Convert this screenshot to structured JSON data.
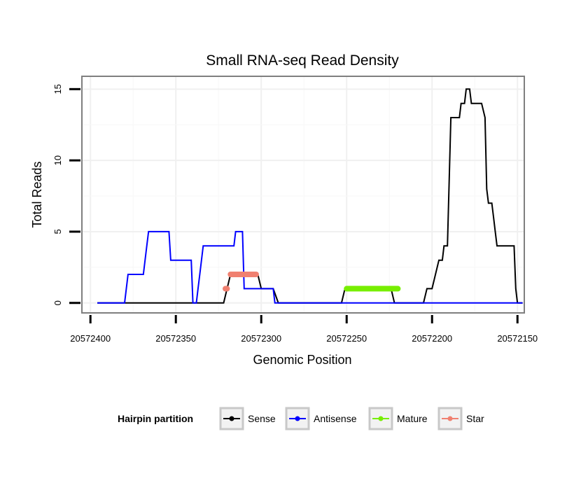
{
  "chart_data": {
    "type": "line",
    "title": "Small RNA-seq Read Density",
    "xlabel": "Genomic Position",
    "ylabel": "Total Reads",
    "x_reversed": true,
    "xlim": [
      20572405,
      20572146
    ],
    "ylim": [
      -0.7,
      15.9
    ],
    "x_ticks": [
      {
        "value": 20572400,
        "label": "20572400"
      },
      {
        "value": 20572350,
        "label": "20572350"
      },
      {
        "value": 20572300,
        "label": "20572300"
      },
      {
        "value": 20572250,
        "label": "20572250"
      },
      {
        "value": 20572200,
        "label": "20572200"
      },
      {
        "value": 20572150,
        "label": "20572150"
      }
    ],
    "y_ticks": [
      {
        "value": 0,
        "label": "0"
      },
      {
        "value": 5,
        "label": "5"
      },
      {
        "value": 10,
        "label": "10"
      },
      {
        "value": 15,
        "label": "15"
      }
    ],
    "grid": true,
    "legend": {
      "title": "Hairpin partition",
      "placement": "bottom",
      "entries": [
        "Sense",
        "Antisense",
        "Mature",
        "Star"
      ]
    },
    "series": [
      {
        "name": "Sense",
        "color": "#000000",
        "points": [
          [
            20572396,
            0
          ],
          [
            20572322,
            0
          ],
          [
            20572320,
            1
          ],
          [
            20572318,
            2
          ],
          [
            20572302,
            2
          ],
          [
            20572300,
            1
          ],
          [
            20572293,
            1
          ],
          [
            20572290,
            0
          ],
          [
            20572253,
            0
          ],
          [
            20572251,
            1
          ],
          [
            20572224,
            1
          ],
          [
            20572222,
            0
          ],
          [
            20572205,
            0
          ],
          [
            20572203,
            1
          ],
          [
            20572200,
            1
          ],
          [
            20572198,
            2
          ],
          [
            20572196,
            3
          ],
          [
            20572194,
            3
          ],
          [
            20572193,
            4
          ],
          [
            20572191,
            4
          ],
          [
            20572189,
            13
          ],
          [
            20572184,
            13
          ],
          [
            20572183,
            14
          ],
          [
            20572181,
            14
          ],
          [
            20572180,
            15
          ],
          [
            20572178,
            15
          ],
          [
            20572177,
            14
          ],
          [
            20572171,
            14
          ],
          [
            20572169,
            13
          ],
          [
            20572168,
            8
          ],
          [
            20572167,
            7
          ],
          [
            20572165,
            7
          ],
          [
            20572164,
            6
          ],
          [
            20572163,
            5
          ],
          [
            20572162,
            4
          ],
          [
            20572152,
            4
          ],
          [
            20572151,
            1
          ],
          [
            20572150,
            0
          ],
          [
            20572147,
            0
          ]
        ]
      },
      {
        "name": "Antisense",
        "color": "#0000ff",
        "points": [
          [
            20572396,
            0
          ],
          [
            20572380,
            0
          ],
          [
            20572378,
            2
          ],
          [
            20572369,
            2
          ],
          [
            20572367,
            4
          ],
          [
            20572366,
            5
          ],
          [
            20572354,
            5
          ],
          [
            20572353,
            3
          ],
          [
            20572341,
            3
          ],
          [
            20572340,
            0
          ],
          [
            20572338,
            0
          ],
          [
            20572337,
            1
          ],
          [
            20572336,
            2
          ],
          [
            20572334,
            4
          ],
          [
            20572316,
            4
          ],
          [
            20572315,
            5
          ],
          [
            20572311,
            5
          ],
          [
            20572310,
            1
          ],
          [
            20572293,
            1
          ],
          [
            20572292,
            0
          ],
          [
            20572147,
            0
          ]
        ]
      },
      {
        "name": "Mature",
        "color": "#77ee00",
        "points": [
          [
            20572250,
            1
          ],
          [
            20572220,
            1
          ]
        ]
      },
      {
        "name": "Star",
        "color": "#f08070",
        "points": [
          [
            20572321,
            1
          ],
          [
            20572320,
            1
          ]
        ],
        "points_b": [
          [
            20572318,
            2
          ],
          [
            20572303,
            2
          ]
        ]
      }
    ]
  }
}
